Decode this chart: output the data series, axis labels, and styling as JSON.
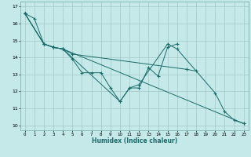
{
  "xlabel": "Humidex (Indice chaleur)",
  "bg_color": "#c5e8e8",
  "grid_color": "#a0c8c8",
  "line_color": "#1a6b6b",
  "xlim": [
    -0.5,
    23.5
  ],
  "ylim": [
    9.7,
    17.3
  ],
  "xticks": [
    0,
    1,
    2,
    3,
    4,
    5,
    6,
    7,
    8,
    9,
    10,
    11,
    12,
    13,
    14,
    15,
    16,
    17,
    18,
    19,
    20,
    21,
    22,
    23
  ],
  "yticks": [
    10,
    11,
    12,
    13,
    14,
    15,
    16,
    17
  ],
  "lines": [
    {
      "x": [
        0,
        1,
        2,
        3,
        4,
        5,
        6,
        7,
        8,
        9,
        10,
        11,
        12,
        13,
        14,
        15,
        16
      ],
      "y": [
        16.6,
        16.3,
        14.8,
        14.6,
        14.5,
        13.9,
        13.1,
        13.1,
        13.1,
        12.2,
        11.4,
        12.2,
        12.2,
        13.4,
        12.9,
        14.6,
        14.8
      ]
    },
    {
      "x": [
        0,
        2,
        3,
        4,
        10,
        11,
        12,
        15,
        16,
        20,
        21,
        22,
        23
      ],
      "y": [
        16.6,
        14.8,
        14.6,
        14.5,
        11.4,
        12.2,
        12.4,
        14.8,
        14.5,
        11.9,
        10.8,
        10.3,
        10.1
      ]
    },
    {
      "x": [
        0,
        2,
        3,
        4,
        5,
        17,
        18
      ],
      "y": [
        16.6,
        14.8,
        14.6,
        14.5,
        14.2,
        13.3,
        13.2
      ]
    },
    {
      "x": [
        0,
        2,
        3,
        4,
        23
      ],
      "y": [
        16.6,
        14.8,
        14.6,
        14.5,
        10.1
      ]
    }
  ]
}
